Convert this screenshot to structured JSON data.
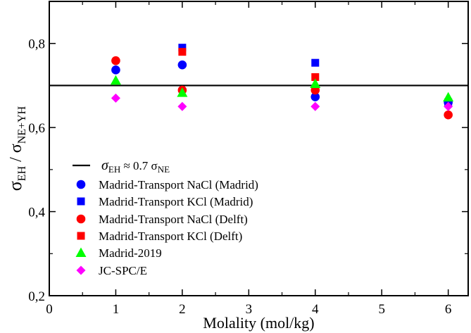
{
  "chart_data": {
    "type": "scatter",
    "title": "",
    "xlabel": "Molality (mol/kg)",
    "ylabel": {
      "prefix": "σ",
      "num_sub": "EH",
      "sep": " / σ",
      "den_sub": "NE+YH"
    },
    "xlim": [
      0,
      6.3
    ],
    "ylim": [
      0.2,
      0.9
    ],
    "x_ticks": [
      0,
      1,
      2,
      3,
      4,
      5,
      6
    ],
    "x_tick_labels": [
      "0",
      "1",
      "2",
      "3",
      "4",
      "5",
      "6"
    ],
    "y_ticks": [
      0.2,
      0.4,
      0.6,
      0.8
    ],
    "y_tick_labels": [
      "0,2",
      "0,4",
      "0,6",
      "0,8"
    ],
    "reference_line": {
      "y": 0.7,
      "label": {
        "a": "σ",
        "a_sub": "EH",
        "mid": " ≈ 0.7 σ",
        "b_sub": "NE"
      }
    },
    "legend_position": "lower-left",
    "series": [
      {
        "name": "Madrid-Transport NaCl (Madrid)",
        "marker": "circle",
        "color": "#0000ff",
        "x": [
          1,
          2,
          4,
          6
        ],
        "y": [
          0.737,
          0.749,
          0.673,
          0.66
        ]
      },
      {
        "name": "Madrid-Transport KCl (Madrid)",
        "marker": "square",
        "color": "#0000ff",
        "x": [
          2,
          4,
          6
        ],
        "y": [
          0.79,
          0.754,
          0.66
        ]
      },
      {
        "name": "Madrid-Transport NaCl (Delft)",
        "marker": "circle",
        "color": "#ff0000",
        "x": [
          1,
          2,
          4,
          6
        ],
        "y": [
          0.759,
          0.689,
          0.689,
          0.63
        ]
      },
      {
        "name": "Madrid-Transport KCl (Delft)",
        "marker": "square",
        "color": "#ff0000",
        "x": [
          2,
          4
        ],
        "y": [
          0.78,
          0.72
        ]
      },
      {
        "name": "Madrid-2019",
        "marker": "triangle",
        "color": "#00ff00",
        "x": [
          1,
          2,
          4,
          6
        ],
        "y": [
          0.712,
          0.683,
          0.704,
          0.672
        ]
      },
      {
        "name": "JC-SPC/E",
        "marker": "diamond",
        "color": "#ff00ff",
        "x": [
          1,
          2,
          4,
          6
        ],
        "y": [
          0.67,
          0.65,
          0.65,
          0.65
        ]
      }
    ]
  }
}
